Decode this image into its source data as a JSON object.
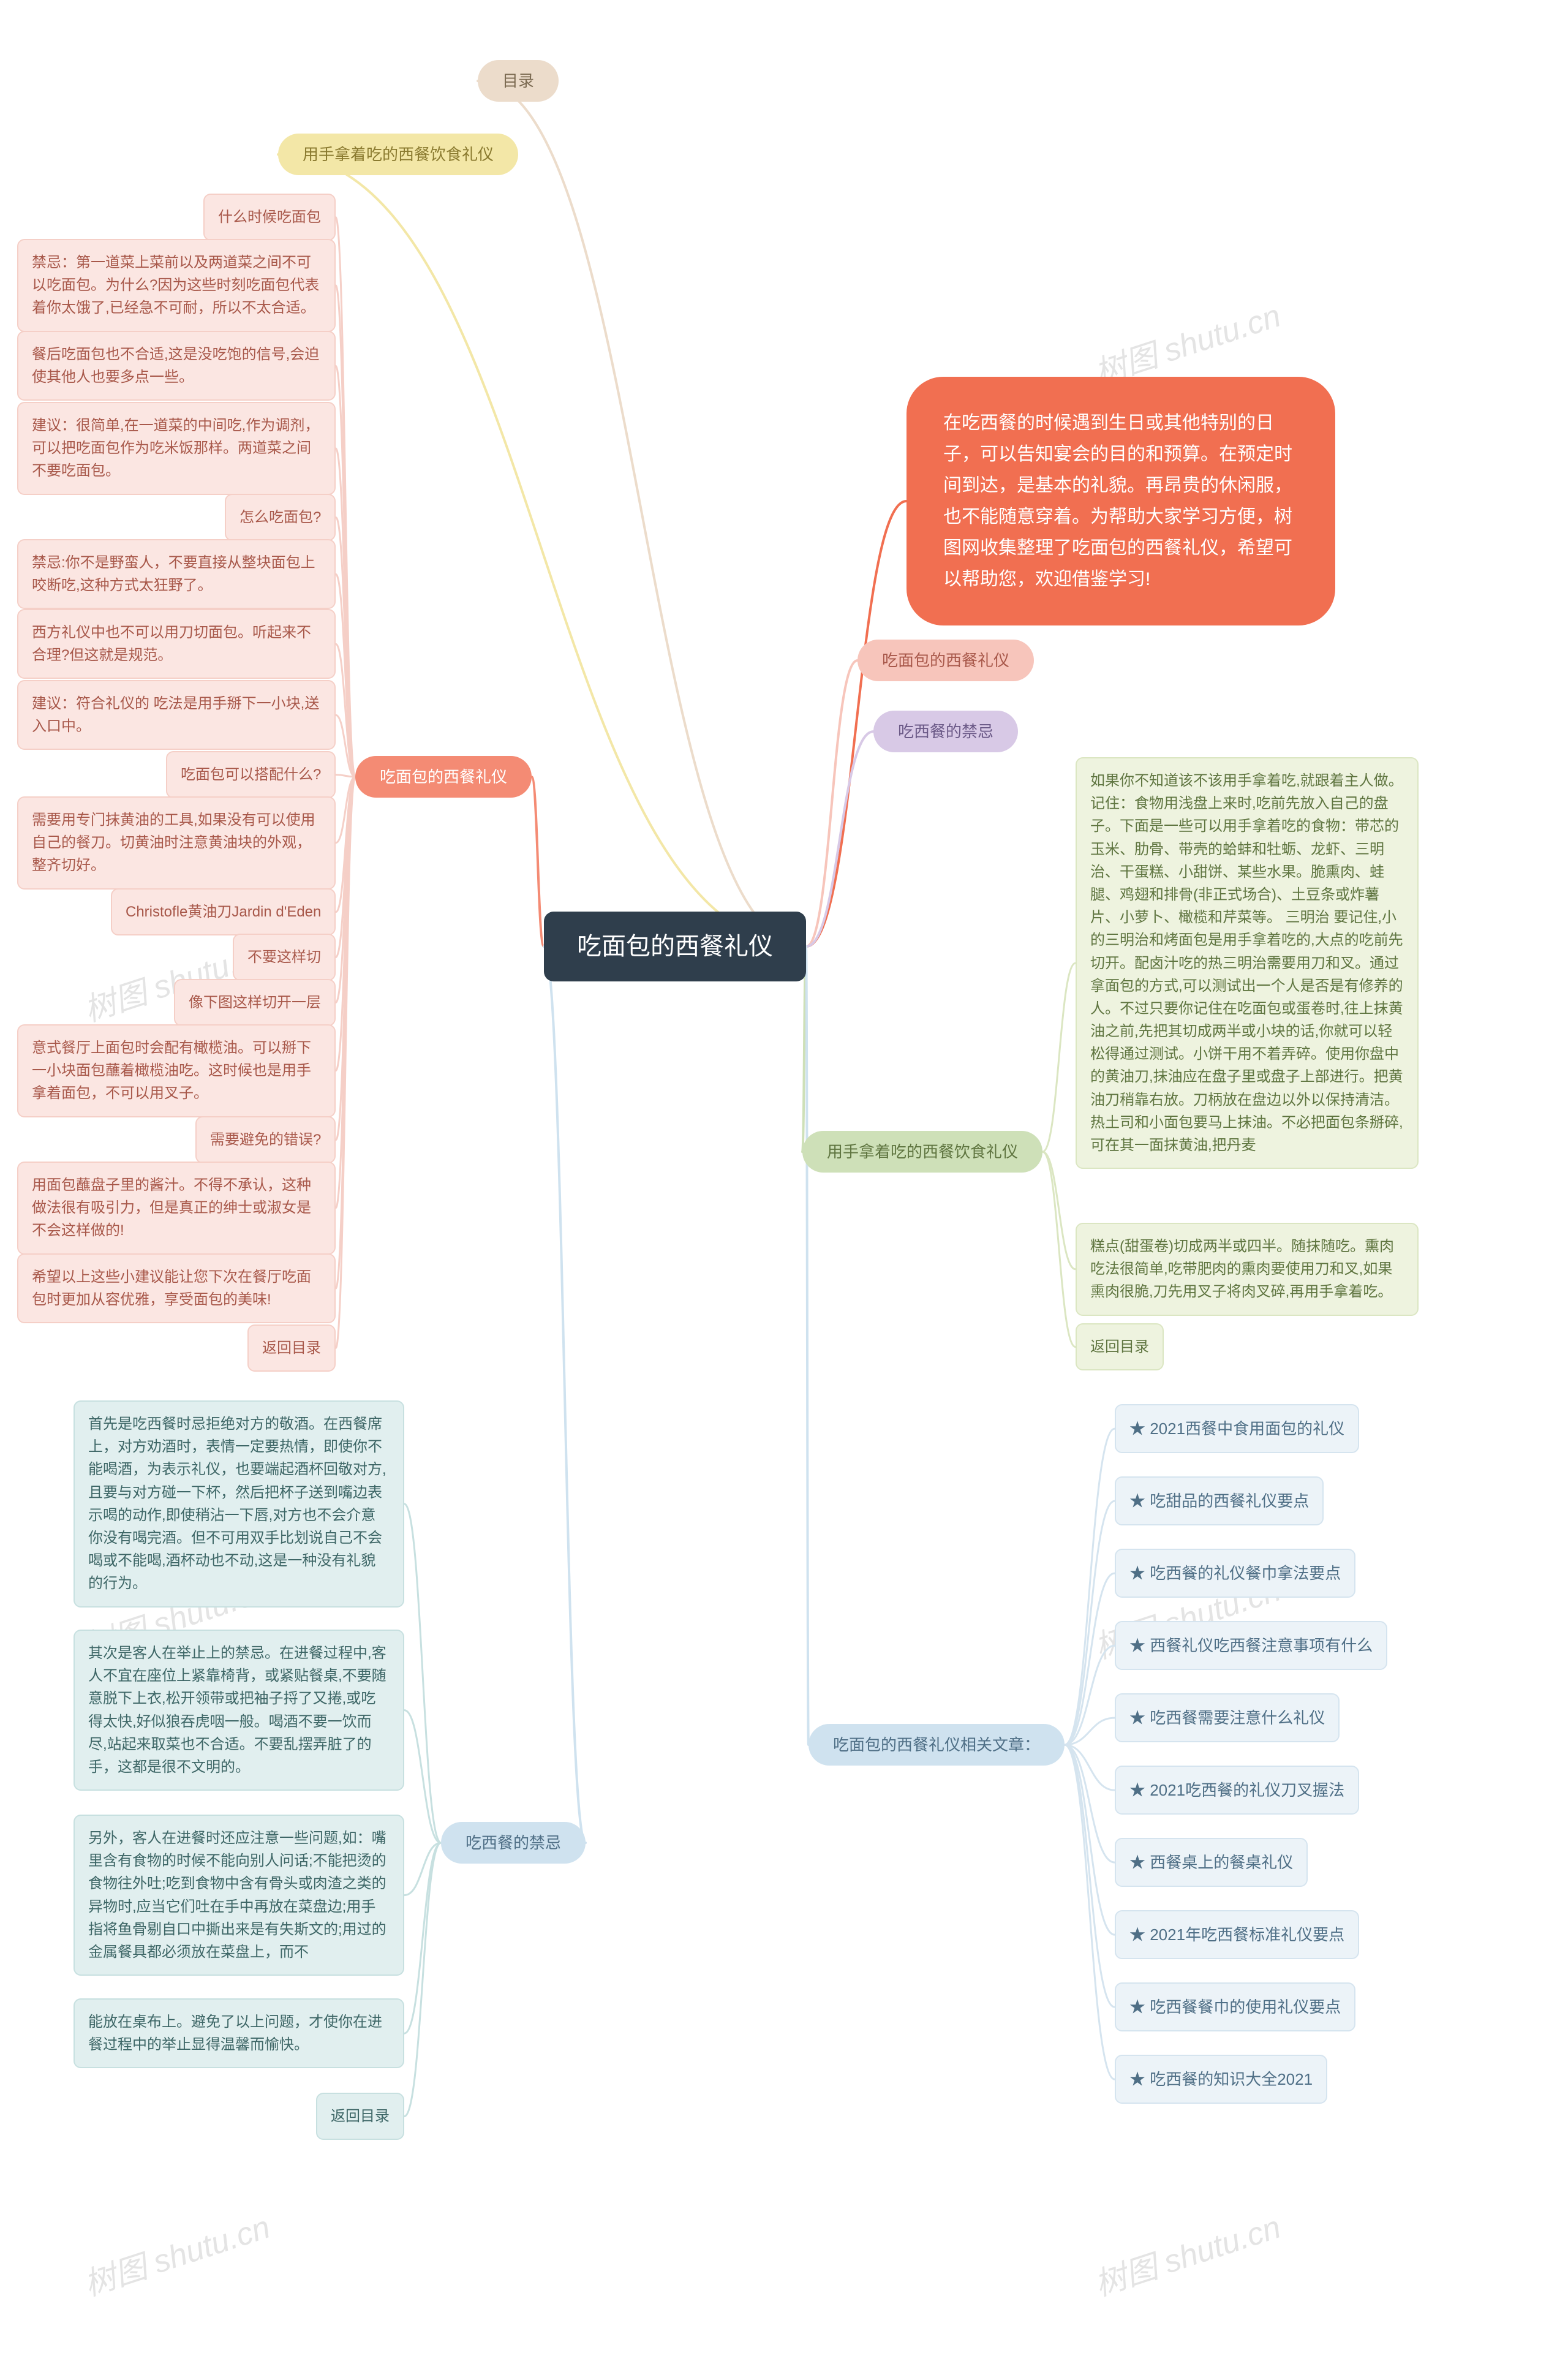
{
  "watermark_text": "树图 shutu.cn",
  "colors": {
    "root_bg": "#2f3e4c",
    "root_fg": "#ffffff",
    "muLu_bg": "#ecdccb",
    "muLu_fg": "#7b6a51",
    "topYellow_bg": "#f3e7a7",
    "topYellow_fg": "#8a7a2f",
    "intro_bg": "#f16f51",
    "intro_fg": "#ffffff",
    "subTitleA_bg": "#f7c5bb",
    "subTitleA_fg": "#a8584a",
    "taboo_bg": "#d8c9e6",
    "taboo_fg": "#6a5886",
    "handEat_bg": "#cee0b8",
    "handEat_fg": "#5f7540",
    "related_bg": "#cfe2ef",
    "related_fg": "#4f6f86",
    "leftMain_bg": "#f48b74",
    "leftMain_fg": "#ffffff",
    "tabooMain_bg": "#cfe2ef",
    "tabooMain_fg": "#4f6f86",
    "pinkLeaf_bg": "#fbe6e2",
    "pinkLeaf_fg": "#a8584a",
    "pinkLeaf_border": "#f5cfc7",
    "tealLeaf_bg": "#e1efef",
    "tealLeaf_fg": "#3d6666",
    "tealLeaf_border": "#c7e0e0",
    "sageLeaf_bg": "#eef3df",
    "sageLeaf_fg": "#5f7540",
    "sageLeaf_border": "#dbe6c2",
    "blueLeaf_bg": "#ecf3f8",
    "blueLeaf_fg": "#4f6f86",
    "blueLeaf_border": "#d5e4ef",
    "edge_default": "#bcbcbc"
  },
  "root": {
    "label": "吃面包的西餐礼仪"
  },
  "right": {
    "muLu": "目录",
    "topYellow": "用手拿着吃的西餐饮食礼仪",
    "intro": "在吃西餐的时候遇到生日或其他特别的日子，可以告知宴会的目的和预算。在预定时间到达，是基本的礼貌。再昂贵的休闲服，也不能随意穿着。为帮助大家学习方便，树图网收集整理了吃面包的西餐礼仪，希望可以帮助您，欢迎借鉴学习!",
    "subTitleA": "吃面包的西餐礼仪",
    "taboo": "吃西餐的禁忌",
    "handEat": "用手拿着吃的西餐饮食礼仪",
    "handLeaf1": "如果你不知道该不该用手拿着吃,就跟着主人做。记住：食物用浅盘上来时,吃前先放入自己的盘子。下面是一些可以用手拿着吃的食物：带芯的 玉米、肋骨、带壳的蛤蚌和牡蛎、龙虾、三明治、干蛋糕、小甜饼、某些水果。脆熏肉、蛙腿、鸡翅和排骨(非正式场合)、土豆条或炸薯片、小萝卜、橄榄和芹菜等。 三明治 要记住,小的三明治和烤面包是用手拿着吃的,大点的吃前先切开。配卤汁吃的热三明治需要用刀和叉。通过拿面包的方式,可以测试出一个人是否是有修养的人。不过只要你记住在吃面包或蛋卷时,往上抹黄油之前,先把其切成两半或小块的话,你就可以轻松得通过测试。小饼干用不着弄碎。使用你盘中的黄油刀,抹油应在盘子里或盘子上部进行。把黄油刀稍靠右放。刀柄放在盘边以外以保持清洁。热土司和小面包要马上抹油。不必把面包条掰碎,可在其一面抹黄油,把丹麦",
    "handLeaf2": "糕点(甜蛋卷)切成两半或四半。随抹随吃。熏肉 吃法很简单,吃带肥肉的熏肉要使用刀和叉,如果熏肉很脆,刀先用叉子将肉叉碎,再用手拿着吃。",
    "handLeaf3": "返回目录",
    "related": "吃面包的西餐礼仪相关文章：",
    "relatedItems": [
      "★ 2021西餐中食用面包的礼仪",
      "★ 吃甜品的西餐礼仪要点",
      "★ 吃西餐的礼仪餐巾拿法要点",
      "★ 西餐礼仪吃西餐注意事项有什么",
      "★ 吃西餐需要注意什么礼仪",
      "★ 2021吃西餐的礼仪刀叉握法",
      "★ 西餐桌上的餐桌礼仪",
      "★ 2021年吃西餐标准礼仪要点",
      "★ 吃西餐餐巾的使用礼仪要点",
      "★ 吃西餐的知识大全2021"
    ]
  },
  "left": {
    "main": "吃面包的西餐礼仪",
    "items": [
      "什么时候吃面包",
      "禁忌：第一道菜上菜前以及两道菜之间不可以吃面包。为什么?因为这些时刻吃面包代表着你太饿了,已经急不可耐，所以不太合适。",
      "餐后吃面包也不合适,这是没吃饱的信号,会迫使其他人也要多点一些。",
      "建议：很简单,在一道菜的中间吃,作为调剂，可以把吃面包作为吃米饭那样。两道菜之间不要吃面包。",
      "怎么吃面包?",
      "禁忌:你不是野蛮人，不要直接从整块面包上咬断吃,这种方式太狂野了。",
      "西方礼仪中也不可以用刀切面包。听起来不合理?但这就是规范。",
      "建议：符合礼仪的 吃法是用手掰下一小块,送入口中。",
      "吃面包可以搭配什么?",
      "需要用专门抹黄油的工具,如果没有可以使用自己的餐刀。切黄油时注意黄油块的外观，整齐切好。",
      "Christofle黄油刀Jardin d'Eden",
      "不要这样切",
      "像下图这样切开一层",
      "意式餐厅上面包时会配有橄榄油。可以掰下一小块面包蘸着橄榄油吃。这时候也是用手拿着面包，不可以用叉子。",
      "需要避免的错误?",
      "用面包蘸盘子里的酱汁。不得不承认，这种做法很有吸引力，但是真正的绅士或淑女是不会这样做的!",
      "希望以上这些小建议能让您下次在餐厅吃面包时更加从容优雅，享受面包的美味!",
      "返回目录"
    ]
  },
  "taboo": {
    "main": "吃西餐的禁忌",
    "items": [
      "首先是吃西餐时忌拒绝对方的敬酒。在西餐席上，对方劝酒时，表情一定要热情，即使你不能喝酒，为表示礼仪，也要端起酒杯回敬对方,且要与对方碰一下杯，然后把杯子送到嘴边表示喝的动作,即使稍沾一下唇,对方也不会介意你没有喝完酒。但不可用双手比划说自己不会喝或不能喝,酒杯动也不动,这是一种没有礼貌的行为。",
      "其次是客人在举止上的禁忌。在进餐过程中,客人不宜在座位上紧靠椅背，或紧贴餐桌,不要随意脱下上衣,松开领带或把袖子捋了又捲,或吃得太快,好似狼吞虎咽一般。喝酒不要一饮而尽,站起来取菜也不合适。不要乱摆弄脏了的手，这都是很不文明的。",
      "另外，客人在进餐时还应注意一些问题,如：嘴里含有食物的时候不能向别人问话;不能把烫的食物往外吐;吃到食物中含有骨头或肉渣之类的异物时,应当它们吐在手中再放在菜盘边;用手指将鱼骨剔自口中撕出来是有失斯文的;用过的金属餐具都必须放在菜盘上，而不",
      "能放在桌布上。避免了以上问题，才使你在进餐过程中的举止显得温馨而愉快。",
      "返回目录"
    ]
  }
}
